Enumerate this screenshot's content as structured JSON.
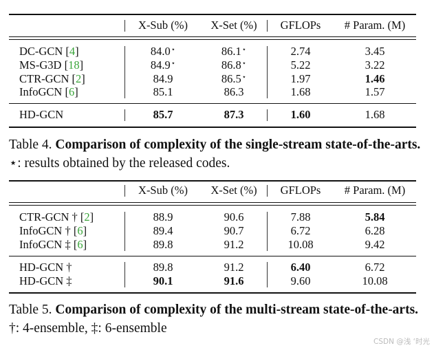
{
  "tables": [
    {
      "headers": [
        "X-Sub (%)",
        "X-Set (%)",
        "GFLOPs",
        "# Param. (M)"
      ],
      "groups": [
        [
          {
            "name": "DC-GCN",
            "mark": "",
            "ref": "4",
            "cells": [
              {
                "v": "84.0",
                "star": "⋆"
              },
              {
                "v": "86.1",
                "star": "⋆"
              },
              {
                "v": "2.74"
              },
              {
                "v": "3.45"
              }
            ]
          },
          {
            "name": "MS-G3D",
            "mark": "",
            "ref": "18",
            "cells": [
              {
                "v": "84.9",
                "star": "⋆"
              },
              {
                "v": "86.8",
                "star": "⋆"
              },
              {
                "v": "5.22"
              },
              {
                "v": "3.22"
              }
            ]
          },
          {
            "name": "CTR-GCN",
            "mark": "",
            "ref": "2",
            "cells": [
              {
                "v": "84.9"
              },
              {
                "v": "86.5",
                "star": "⋆"
              },
              {
                "v": "1.97"
              },
              {
                "v": "1.46",
                "bold": true
              }
            ]
          },
          {
            "name": "InfoGCN",
            "mark": "",
            "ref": "6",
            "cells": [
              {
                "v": "85.1"
              },
              {
                "v": "86.3"
              },
              {
                "v": "1.68"
              },
              {
                "v": "1.57"
              }
            ]
          }
        ],
        [
          {
            "name": "HD-GCN",
            "mark": "",
            "ref": "",
            "cells": [
              {
                "v": "85.7",
                "bold": true
              },
              {
                "v": "87.3",
                "bold": true
              },
              {
                "v": "1.60",
                "bold": true
              },
              {
                "v": "1.68"
              }
            ]
          }
        ]
      ],
      "caption": {
        "label": "Table 4.",
        "bold": "Comparison of complexity of the single-stream state-of-the-arts.",
        "rest": "⋆: results obtained by the released codes."
      }
    },
    {
      "headers": [
        "X-Sub (%)",
        "X-Set (%)",
        "GFLOPs",
        "# Param. (M)"
      ],
      "groups": [
        [
          {
            "name": "CTR-GCN",
            "mark": "†",
            "ref": "2",
            "cells": [
              {
                "v": "88.9"
              },
              {
                "v": "90.6"
              },
              {
                "v": "7.88"
              },
              {
                "v": "5.84",
                "bold": true
              }
            ]
          },
          {
            "name": "InfoGCN",
            "mark": "†",
            "ref": "6",
            "cells": [
              {
                "v": "89.4"
              },
              {
                "v": "90.7"
              },
              {
                "v": "6.72"
              },
              {
                "v": "6.28"
              }
            ]
          },
          {
            "name": "InfoGCN",
            "mark": "‡",
            "ref": "6",
            "cells": [
              {
                "v": "89.8"
              },
              {
                "v": "91.2"
              },
              {
                "v": "10.08"
              },
              {
                "v": "9.42"
              }
            ]
          }
        ],
        [
          {
            "name": "HD-GCN",
            "mark": "†",
            "ref": "",
            "cells": [
              {
                "v": "89.8"
              },
              {
                "v": "91.2"
              },
              {
                "v": "6.40",
                "bold": true
              },
              {
                "v": "6.72"
              }
            ]
          },
          {
            "name": "HD-GCN",
            "mark": "‡",
            "ref": "",
            "cells": [
              {
                "v": "90.1",
                "bold": true
              },
              {
                "v": "91.6",
                "bold": true
              },
              {
                "v": "9.60"
              },
              {
                "v": "10.08"
              }
            ]
          }
        ]
      ],
      "caption": {
        "label": "Table 5.",
        "bold": "Comparison of complexity of the multi-stream state-of-the-arts.",
        "rest": "†: 4-ensemble, ‡: 6-ensemble"
      }
    }
  ],
  "watermark": "CSDN @浅 ‘时光",
  "colors": {
    "ref": "#3aa53a",
    "text": "#111111"
  }
}
